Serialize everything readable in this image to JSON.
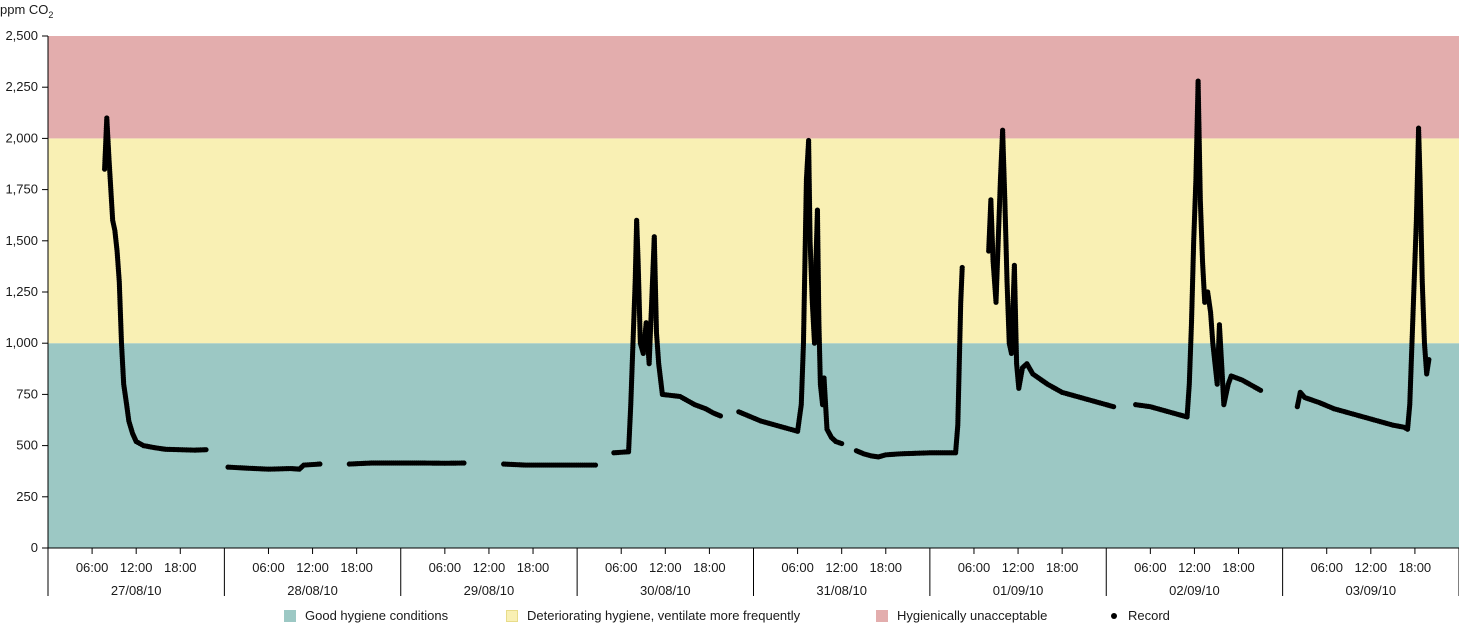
{
  "chart_data": {
    "type": "scatter",
    "ylabel": "ppm CO",
    "ylabel_sub": "2",
    "ylim": [
      0,
      2500
    ],
    "yticks": [
      0,
      250,
      500,
      750,
      1000,
      1250,
      1500,
      1750,
      2000,
      2250,
      2500
    ],
    "ytick_labels": [
      "0",
      "250",
      "500",
      "750",
      "1,000",
      "1,250",
      "1,500",
      "1,750",
      "2,000",
      "2,250",
      "2,500"
    ],
    "x_unit": "hours since 27/08/10 00:00",
    "xlim": [
      0,
      192
    ],
    "days": [
      "27/08/10",
      "28/08/10",
      "29/08/10",
      "30/08/10",
      "31/08/10",
      "01/09/10",
      "02/09/10",
      "03/09/10"
    ],
    "hour_tick_labels": [
      "06:00",
      "12:00",
      "18:00"
    ],
    "bands": [
      {
        "name": "Good hygiene conditions",
        "from": 0,
        "to": 1000,
        "color": "#9cc8c4"
      },
      {
        "name": "Deteriorating hygiene, ventilate more frequently",
        "from": 1000,
        "to": 2000,
        "color": "#f9f0b4"
      },
      {
        "name": "Hygienically unacceptable",
        "from": 2000,
        "to": 2500,
        "color": "#e3adad"
      }
    ],
    "series": [
      {
        "name": "Record",
        "color": "#000000",
        "segments": [
          [
            [
              7.7,
              1850
            ],
            [
              8.0,
              2100
            ],
            [
              8.3,
              1900
            ],
            [
              8.8,
              1600
            ],
            [
              9.1,
              1550
            ],
            [
              9.4,
              1450
            ],
            [
              9.7,
              1300
            ],
            [
              10.0,
              1000
            ],
            [
              10.3,
              800
            ],
            [
              10.7,
              700
            ],
            [
              11.0,
              620
            ],
            [
              11.5,
              560
            ],
            [
              12.0,
              520
            ],
            [
              13.0,
              500
            ],
            [
              14.5,
              490
            ],
            [
              16.0,
              482
            ],
            [
              18.0,
              480
            ],
            [
              20.0,
              478
            ],
            [
              21.5,
              480
            ]
          ],
          [
            [
              24.5,
              395
            ],
            [
              27.0,
              390
            ],
            [
              30.0,
              385
            ],
            [
              33.0,
              388
            ],
            [
              34.2,
              385
            ],
            [
              34.8,
              405
            ],
            [
              37.0,
              410
            ]
          ],
          [
            [
              41.0,
              410
            ],
            [
              44.0,
              415
            ],
            [
              47.0,
              415
            ],
            [
              51.0,
              415
            ],
            [
              54.0,
              414
            ],
            [
              56.6,
              415
            ]
          ],
          [
            [
              62.0,
              410
            ],
            [
              65.0,
              405
            ],
            [
              68.0,
              405
            ],
            [
              71.0,
              405
            ],
            [
              74.5,
              405
            ]
          ],
          [
            [
              77.0,
              465
            ],
            [
              79.0,
              470
            ],
            [
              79.3,
              700
            ],
            [
              79.6,
              1000
            ],
            [
              79.9,
              1300
            ],
            [
              80.1,
              1600
            ],
            [
              80.3,
              1400
            ],
            [
              80.6,
              1000
            ],
            [
              81.0,
              950
            ],
            [
              81.4,
              1100
            ],
            [
              81.8,
              900
            ],
            [
              82.2,
              1250
            ],
            [
              82.5,
              1520
            ],
            [
              82.8,
              1050
            ],
            [
              83.1,
              900
            ],
            [
              83.6,
              750
            ],
            [
              86.0,
              740
            ],
            [
              88.0,
              700
            ],
            [
              89.5,
              680
            ],
            [
              90.5,
              660
            ],
            [
              91.5,
              645
            ]
          ],
          [
            [
              94.0,
              665
            ],
            [
              97.0,
              620
            ],
            [
              100.0,
              590
            ],
            [
              102.0,
              570
            ],
            [
              102.5,
              700
            ],
            [
              102.8,
              1000
            ],
            [
              103.0,
              1400
            ],
            [
              103.2,
              1800
            ],
            [
              103.5,
              1990
            ],
            [
              103.7,
              1500
            ],
            [
              104.0,
              1200
            ],
            [
              104.3,
              1000
            ],
            [
              104.5,
              1400
            ],
            [
              104.7,
              1650
            ],
            [
              104.9,
              1100
            ],
            [
              105.1,
              800
            ],
            [
              105.4,
              700
            ],
            [
              105.6,
              830
            ],
            [
              106.0,
              580
            ],
            [
              106.6,
              540
            ],
            [
              107.2,
              520
            ],
            [
              108.0,
              510
            ]
          ],
          [
            [
              110.0,
              475
            ],
            [
              111.0,
              460
            ],
            [
              112.0,
              450
            ],
            [
              113.0,
              445
            ],
            [
              114.0,
              455
            ],
            [
              116.0,
              460
            ],
            [
              120.0,
              465
            ],
            [
              123.5,
              465
            ],
            [
              123.8,
              600
            ],
            [
              124.0,
              900
            ],
            [
              124.2,
              1200
            ],
            [
              124.4,
              1370
            ]
          ],
          [
            [
              128.0,
              1450
            ],
            [
              128.3,
              1700
            ],
            [
              128.6,
              1400
            ],
            [
              129.0,
              1200
            ],
            [
              129.3,
              1500
            ],
            [
              129.6,
              1800
            ],
            [
              129.9,
              2040
            ],
            [
              130.2,
              1700
            ],
            [
              130.5,
              1300
            ],
            [
              130.8,
              1000
            ],
            [
              131.1,
              950
            ],
            [
              131.5,
              1380
            ],
            [
              131.8,
              900
            ],
            [
              132.1,
              780
            ],
            [
              132.6,
              880
            ],
            [
              133.2,
              900
            ],
            [
              134.0,
              850
            ],
            [
              136.0,
              800
            ],
            [
              138.0,
              760
            ],
            [
              140.0,
              740
            ],
            [
              142.0,
              720
            ],
            [
              144.0,
              700
            ],
            [
              145.0,
              690
            ]
          ],
          [
            [
              148.0,
              700
            ],
            [
              150.0,
              690
            ],
            [
              152.0,
              670
            ],
            [
              154.0,
              650
            ],
            [
              155.0,
              640
            ],
            [
              155.3,
              800
            ],
            [
              155.6,
              1100
            ],
            [
              155.9,
              1500
            ],
            [
              156.2,
              1800
            ],
            [
              156.5,
              2280
            ],
            [
              156.8,
              1700
            ],
            [
              157.1,
              1400
            ],
            [
              157.4,
              1200
            ],
            [
              157.8,
              1250
            ],
            [
              158.2,
              1150
            ],
            [
              158.5,
              1000
            ],
            [
              158.8,
              900
            ],
            [
              159.1,
              800
            ],
            [
              159.4,
              1090
            ],
            [
              159.7,
              900
            ],
            [
              160.0,
              700
            ],
            [
              160.3,
              750
            ],
            [
              160.6,
              800
            ],
            [
              161.0,
              840
            ],
            [
              162.5,
              820
            ],
            [
              164.0,
              790
            ],
            [
              165.0,
              770
            ]
          ],
          [
            [
              170.0,
              690
            ],
            [
              170.4,
              760
            ],
            [
              171.0,
              735
            ],
            [
              173.0,
              710
            ],
            [
              175.0,
              680
            ],
            [
              177.0,
              660
            ],
            [
              179.0,
              640
            ],
            [
              181.0,
              620
            ],
            [
              183.0,
              600
            ],
            [
              184.5,
              590
            ],
            [
              185.0,
              580
            ],
            [
              185.3,
              700
            ],
            [
              185.6,
              1000
            ],
            [
              185.9,
              1300
            ],
            [
              186.2,
              1600
            ],
            [
              186.5,
              2050
            ],
            [
              186.7,
              1800
            ],
            [
              187.0,
              1300
            ],
            [
              187.3,
              1000
            ],
            [
              187.6,
              850
            ],
            [
              187.9,
              920
            ]
          ]
        ]
      }
    ]
  },
  "legend": {
    "good": "Good hygiene conditions",
    "deteriorating": "Deteriorating hygiene, ventilate more frequently",
    "unacceptable": "Hygienically unacceptable",
    "record": "Record"
  }
}
